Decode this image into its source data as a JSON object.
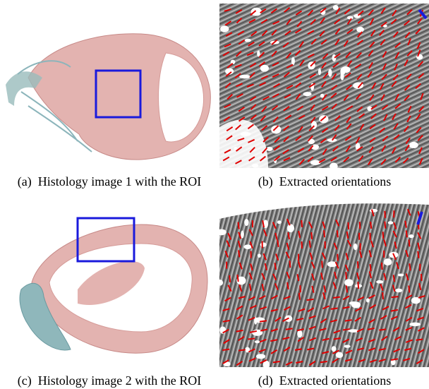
{
  "figure": {
    "panels": [
      {
        "caption": "(a)  Histology image 1 with the ROI"
      },
      {
        "caption": "(b)  Extracted orientations"
      },
      {
        "caption": "(c)  Histology image 2 with the ROI"
      },
      {
        "caption": "(d)  Extracted orientations"
      }
    ]
  }
}
